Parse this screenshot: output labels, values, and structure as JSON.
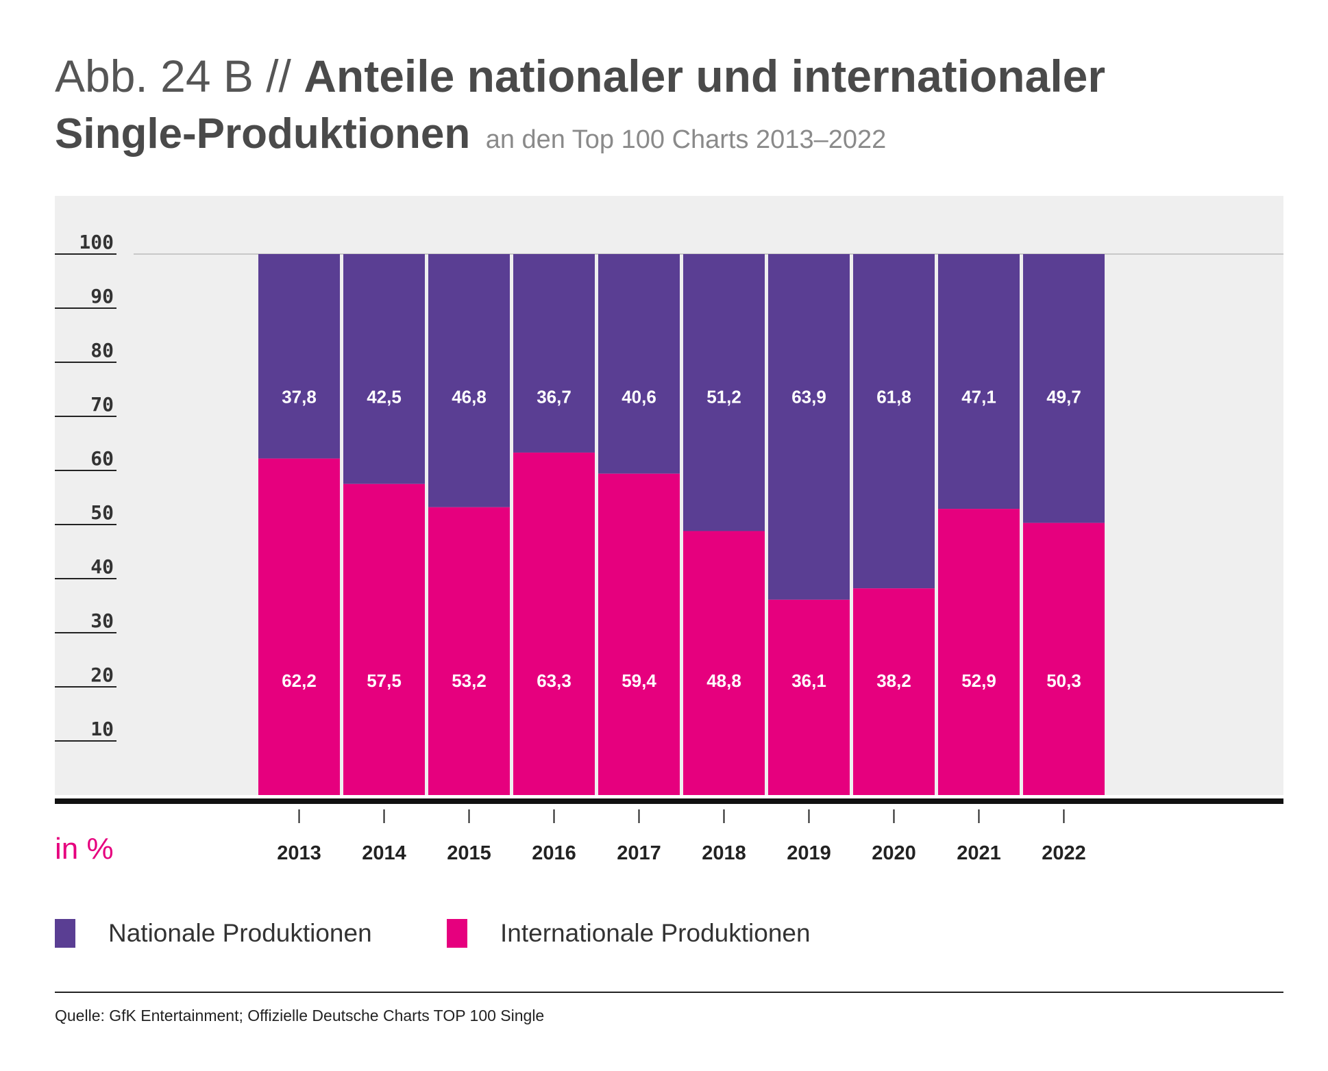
{
  "header": {
    "prefix": "Abb. 24 B //",
    "title_main": "Anteile nationaler und internationaler",
    "title_line2": "Single-Produktionen",
    "subtitle": "an den Top 100 Charts 2013–2022"
  },
  "unit_label": "in %",
  "legend": {
    "national": "Nationale Produktionen",
    "international": "Internationale Produktionen"
  },
  "source": "Quelle: GfK Entertainment; Offizielle Deutsche Charts TOP 100 Single",
  "colors": {
    "national": "#5a3e93",
    "international": "#e6007e",
    "plot_background": "#efefef",
    "label": "#ffffff"
  },
  "chart_data": {
    "type": "bar",
    "stacked": true,
    "categories": [
      "2013",
      "2014",
      "2015",
      "2016",
      "2017",
      "2018",
      "2019",
      "2020",
      "2021",
      "2022"
    ],
    "series": [
      {
        "name": "Internationale Produktionen",
        "values": [
          62.2,
          57.5,
          53.2,
          63.3,
          59.4,
          48.8,
          36.1,
          38.2,
          52.9,
          50.3
        ],
        "labels": [
          "62,2",
          "57,5",
          "53,2",
          "63,3",
          "59,4",
          "48,8",
          "36,1",
          "38,2",
          "52,9",
          "50,3"
        ]
      },
      {
        "name": "Nationale Produktionen",
        "values": [
          37.8,
          42.5,
          46.8,
          36.7,
          40.6,
          51.2,
          63.9,
          61.8,
          47.1,
          49.7
        ],
        "labels": [
          "37,8",
          "42,5",
          "46,8",
          "36,7",
          "40,6",
          "51,2",
          "63,9",
          "61,8",
          "47,1",
          "49,7"
        ]
      }
    ],
    "yticks": [
      "10",
      "20",
      "30",
      "40",
      "50",
      "60",
      "70",
      "80",
      "90",
      "100"
    ],
    "ylim": [
      0,
      100
    ],
    "grid": false
  }
}
